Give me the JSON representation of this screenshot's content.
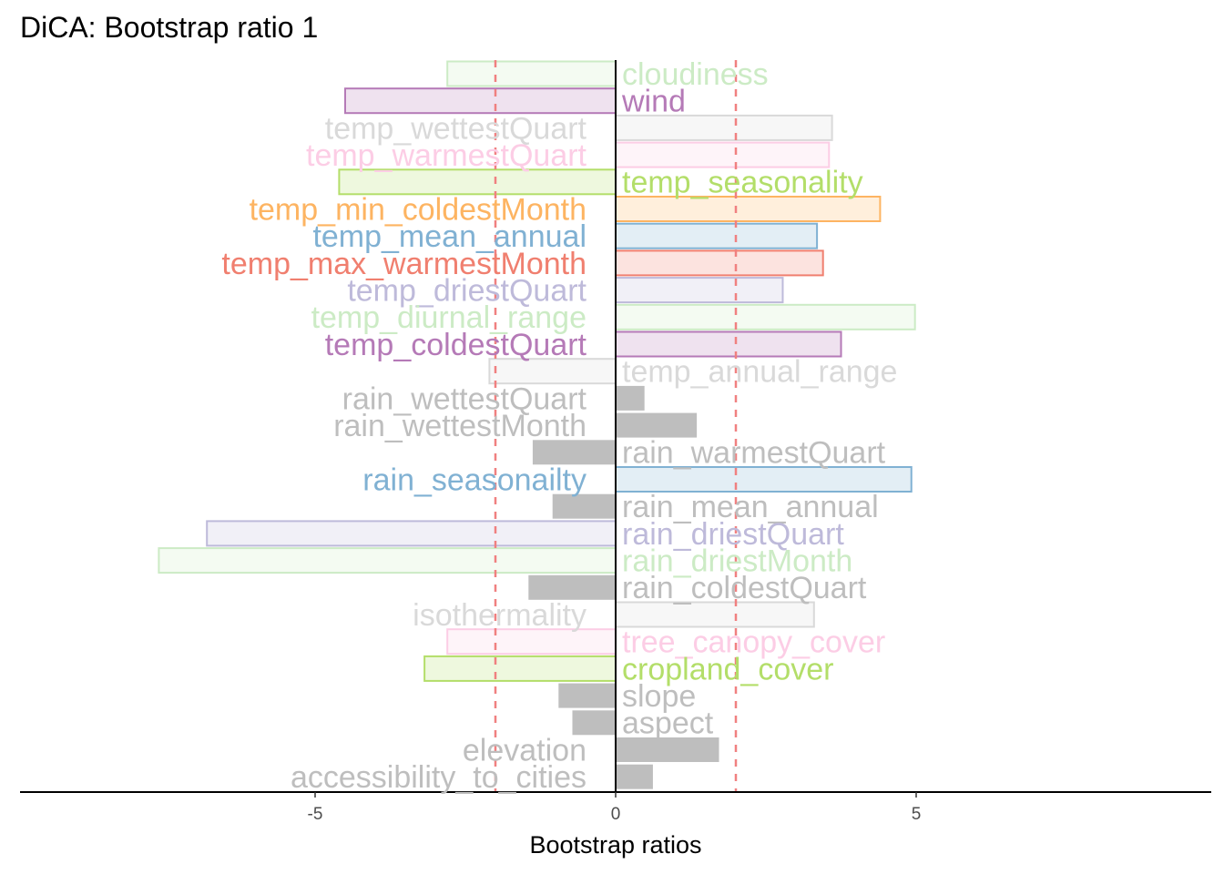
{
  "chart_data": {
    "type": "bar",
    "orientation": "horizontal",
    "title": "DiCA: Bootstrap ratio 1",
    "xlabel": "Bootstrap ratios",
    "ylabel": "",
    "xlim": [
      -10,
      10
    ],
    "xticks": [
      {
        "value": -5,
        "label": "-5"
      },
      {
        "value": 0,
        "label": "0"
      },
      {
        "value": 5,
        "label": "5"
      }
    ],
    "threshold_lines": [
      -2,
      2
    ],
    "threshold_color": "#f08080",
    "grid": false,
    "legend": "none",
    "bars": [
      {
        "label": "cloudiness",
        "value": -2.8,
        "significant": true,
        "color": "#ccebc5"
      },
      {
        "label": "wind",
        "value": -4.5,
        "significant": true,
        "color": "#b57ab7"
      },
      {
        "label": "temp_wettestQuart",
        "value": 3.6,
        "significant": true,
        "color": "#d9d9d9"
      },
      {
        "label": "temp_warmestQuart",
        "value": 3.55,
        "significant": true,
        "color": "#fccde5"
      },
      {
        "label": "temp_seasonality",
        "value": -4.6,
        "significant": true,
        "color": "#b3de69"
      },
      {
        "label": "temp_min_coldestMonth",
        "value": 4.4,
        "significant": true,
        "color": "#fdb462"
      },
      {
        "label": "temp_mean_annual",
        "value": 3.35,
        "significant": true,
        "color": "#80b1d3"
      },
      {
        "label": "temp_max_warmestMonth",
        "value": 3.45,
        "significant": true,
        "color": "#f07f6f"
      },
      {
        "label": "temp_driestQuart",
        "value": 2.78,
        "significant": true,
        "color": "#bebada"
      },
      {
        "label": "temp_diurnal_range",
        "value": 4.98,
        "significant": true,
        "color": "#ccebc5"
      },
      {
        "label": "temp_coldestQuart",
        "value": 3.75,
        "significant": true,
        "color": "#b57ab7"
      },
      {
        "label": "temp_annual_range",
        "value": -2.1,
        "significant": true,
        "color": "#d9d9d9"
      },
      {
        "label": "rain_wettestQuart",
        "value": 0.48,
        "significant": false,
        "color": "#bebebe"
      },
      {
        "label": "rain_wettestMonth",
        "value": 1.35,
        "significant": false,
        "color": "#bebebe"
      },
      {
        "label": "rain_warmestQuart",
        "value": -1.38,
        "significant": false,
        "color": "#bebebe"
      },
      {
        "label": "rain_seasonailty",
        "value": 4.92,
        "significant": true,
        "color": "#80b1d3"
      },
      {
        "label": "rain_mean_annual",
        "value": -1.05,
        "significant": false,
        "color": "#bebebe"
      },
      {
        "label": "rain_driestQuart",
        "value": -6.8,
        "significant": true,
        "color": "#bebada"
      },
      {
        "label": "rain_driestMonth",
        "value": -7.6,
        "significant": true,
        "color": "#ccebc5"
      },
      {
        "label": "rain_coldestQuart",
        "value": -1.45,
        "significant": false,
        "color": "#bebebe"
      },
      {
        "label": "isothermality",
        "value": 3.3,
        "significant": true,
        "color": "#d9d9d9"
      },
      {
        "label": "tree_canopy_cover",
        "value": -2.8,
        "significant": true,
        "color": "#fccde5"
      },
      {
        "label": "cropland_cover",
        "value": -3.18,
        "significant": true,
        "color": "#b3de69"
      },
      {
        "label": "slope",
        "value": -0.95,
        "significant": false,
        "color": "#bebebe"
      },
      {
        "label": "aspect",
        "value": -0.72,
        "significant": false,
        "color": "#bebebe"
      },
      {
        "label": "elevation",
        "value": 1.72,
        "significant": false,
        "color": "#bebebe"
      },
      {
        "label": "accessibility_to_cities",
        "value": 0.62,
        "significant": false,
        "color": "#bebebe"
      }
    ]
  }
}
